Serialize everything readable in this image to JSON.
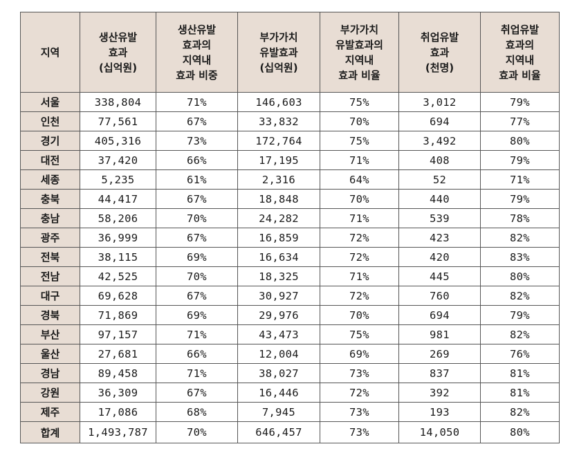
{
  "table": {
    "headers": [
      [
        "지역"
      ],
      [
        "생산유발",
        "효과",
        "(십억원)"
      ],
      [
        "생산유발",
        "효과의",
        "지역내",
        "효과 비중"
      ],
      [
        "부가가치",
        "유발효과",
        "(십억원)"
      ],
      [
        "부가가치",
        "유발효과의",
        "지역내",
        "효과 비율"
      ],
      [
        "취업유발",
        "효과",
        "(천명)"
      ],
      [
        "취업유발",
        "효과의",
        "지역내",
        "효과 비율"
      ]
    ],
    "rows": [
      [
        "서울",
        "338,804",
        "71%",
        "146,603",
        "75%",
        "3,012",
        "79%"
      ],
      [
        "인천",
        "77,561",
        "67%",
        "33,832",
        "70%",
        "694",
        "77%"
      ],
      [
        "경기",
        "405,316",
        "73%",
        "172,764",
        "75%",
        "3,492",
        "80%"
      ],
      [
        "대전",
        "37,420",
        "66%",
        "17,195",
        "71%",
        "408",
        "79%"
      ],
      [
        "세종",
        "5,235",
        "61%",
        "2,316",
        "64%",
        "52",
        "71%"
      ],
      [
        "충북",
        "44,417",
        "67%",
        "18,848",
        "70%",
        "440",
        "79%"
      ],
      [
        "충남",
        "58,206",
        "70%",
        "24,282",
        "71%",
        "539",
        "78%"
      ],
      [
        "광주",
        "36,999",
        "67%",
        "16,859",
        "72%",
        "423",
        "82%"
      ],
      [
        "전북",
        "38,115",
        "69%",
        "16,634",
        "72%",
        "420",
        "83%"
      ],
      [
        "전남",
        "42,525",
        "70%",
        "18,325",
        "71%",
        "445",
        "80%"
      ],
      [
        "대구",
        "69,628",
        "67%",
        "30,927",
        "72%",
        "760",
        "82%"
      ],
      [
        "경북",
        "71,869",
        "69%",
        "29,976",
        "70%",
        "694",
        "79%"
      ],
      [
        "부산",
        "97,157",
        "71%",
        "43,473",
        "75%",
        "981",
        "82%"
      ],
      [
        "울산",
        "27,681",
        "66%",
        "12,004",
        "69%",
        "269",
        "76%"
      ],
      [
        "경남",
        "89,458",
        "71%",
        "38,027",
        "73%",
        "837",
        "81%"
      ],
      [
        "강원",
        "36,309",
        "67%",
        "16,446",
        "72%",
        "392",
        "81%"
      ],
      [
        "제주",
        "17,086",
        "68%",
        "7,945",
        "73%",
        "193",
        "82%"
      ]
    ],
    "total": [
      "합계",
      "1,493,787",
      "70%",
      "646,457",
      "73%",
      "14,050",
      "80%"
    ]
  }
}
